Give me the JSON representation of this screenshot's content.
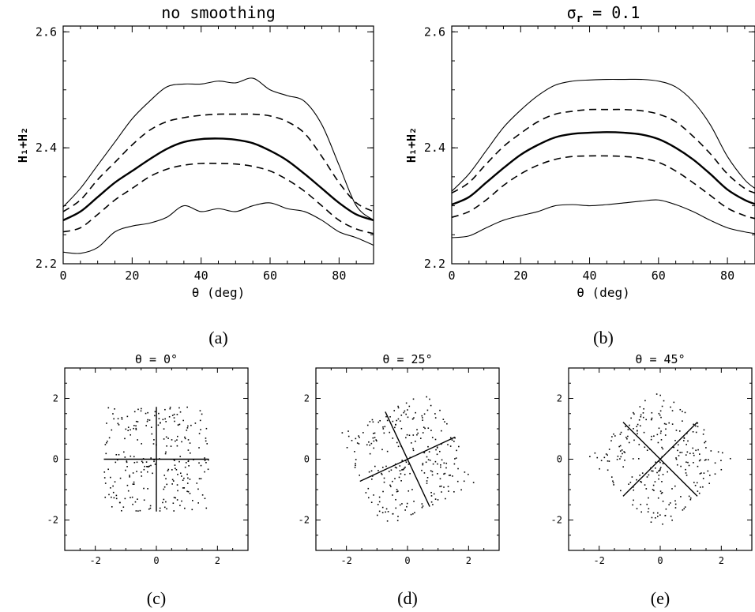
{
  "chart_data": [
    {
      "id": "a",
      "type": "line",
      "title": "no smoothing",
      "caption": "(a)",
      "xlabel": "θ (deg)",
      "ylabel": "H₁+H₂",
      "xlim": [
        0,
        90
      ],
      "ylim": [
        2.2,
        2.61
      ],
      "xticks": [
        0,
        20,
        40,
        60,
        80
      ],
      "yticks": [
        2.2,
        2.4,
        2.6
      ],
      "yticklabels": [
        "2.2",
        "2.4",
        "2.6"
      ],
      "x": [
        0,
        5,
        10,
        15,
        20,
        25,
        30,
        35,
        40,
        45,
        50,
        55,
        60,
        65,
        70,
        75,
        80,
        85,
        90
      ],
      "series": [
        {
          "style": "thin",
          "values": [
            2.298,
            2.33,
            2.37,
            2.41,
            2.45,
            2.48,
            2.505,
            2.51,
            2.51,
            2.515,
            2.512,
            2.52,
            2.5,
            2.49,
            2.48,
            2.44,
            2.37,
            2.3,
            2.275
          ]
        },
        {
          "style": "dashed",
          "values": [
            2.29,
            2.31,
            2.345,
            2.375,
            2.405,
            2.43,
            2.445,
            2.452,
            2.456,
            2.458,
            2.458,
            2.458,
            2.455,
            2.445,
            2.425,
            2.385,
            2.34,
            2.305,
            2.29
          ]
        },
        {
          "style": "thick",
          "values": [
            2.275,
            2.29,
            2.315,
            2.34,
            2.36,
            2.38,
            2.398,
            2.41,
            2.415,
            2.416,
            2.414,
            2.408,
            2.395,
            2.378,
            2.355,
            2.33,
            2.305,
            2.285,
            2.275
          ]
        },
        {
          "style": "dashed",
          "values": [
            2.255,
            2.262,
            2.285,
            2.31,
            2.33,
            2.35,
            2.363,
            2.37,
            2.373,
            2.373,
            2.372,
            2.368,
            2.36,
            2.345,
            2.325,
            2.3,
            2.275,
            2.26,
            2.252
          ]
        },
        {
          "style": "thin",
          "values": [
            2.22,
            2.218,
            2.228,
            2.255,
            2.265,
            2.27,
            2.28,
            2.3,
            2.29,
            2.295,
            2.29,
            2.3,
            2.305,
            2.295,
            2.29,
            2.275,
            2.255,
            2.245,
            2.232
          ]
        }
      ]
    },
    {
      "id": "b",
      "type": "line",
      "title": "σr = 0.1",
      "title_symbol": "σ",
      "title_sub": "r",
      "title_rest": " = 0.1",
      "caption": "(b)",
      "xlabel": "θ (deg)",
      "ylabel": "H₁+H₂",
      "xlim": [
        0,
        88
      ],
      "ylim": [
        2.2,
        2.61
      ],
      "xticks": [
        0,
        20,
        40,
        60,
        80
      ],
      "yticks": [
        2.2,
        2.4,
        2.6
      ],
      "yticklabels": [
        "2.2",
        "2.4",
        "2.6"
      ],
      "x": [
        0,
        5,
        10,
        15,
        20,
        25,
        30,
        35,
        40,
        45,
        50,
        55,
        60,
        65,
        70,
        75,
        80,
        85,
        88
      ],
      "series": [
        {
          "style": "thin",
          "values": [
            2.325,
            2.355,
            2.395,
            2.435,
            2.465,
            2.49,
            2.508,
            2.515,
            2.517,
            2.518,
            2.518,
            2.518,
            2.515,
            2.505,
            2.48,
            2.44,
            2.385,
            2.345,
            2.33
          ]
        },
        {
          "style": "dashed",
          "values": [
            2.322,
            2.34,
            2.372,
            2.402,
            2.425,
            2.445,
            2.458,
            2.463,
            2.466,
            2.466,
            2.466,
            2.464,
            2.458,
            2.445,
            2.42,
            2.39,
            2.355,
            2.33,
            2.322
          ]
        },
        {
          "style": "thick",
          "values": [
            2.302,
            2.315,
            2.34,
            2.365,
            2.388,
            2.405,
            2.418,
            2.424,
            2.426,
            2.427,
            2.426,
            2.423,
            2.415,
            2.4,
            2.38,
            2.355,
            2.328,
            2.31,
            2.303
          ]
        },
        {
          "style": "dashed",
          "values": [
            2.28,
            2.29,
            2.31,
            2.335,
            2.355,
            2.37,
            2.38,
            2.385,
            2.386,
            2.386,
            2.385,
            2.382,
            2.375,
            2.36,
            2.34,
            2.318,
            2.296,
            2.283,
            2.278
          ]
        },
        {
          "style": "thin",
          "values": [
            2.245,
            2.248,
            2.262,
            2.275,
            2.283,
            2.29,
            2.3,
            2.302,
            2.3,
            2.302,
            2.305,
            2.308,
            2.31,
            2.302,
            2.29,
            2.275,
            2.262,
            2.255,
            2.252
          ]
        }
      ]
    },
    {
      "id": "c",
      "type": "scatter",
      "title": "θ =  0°",
      "caption": "(c)",
      "rotation_deg": 0,
      "half_width": 1.72,
      "xlim": [
        -3,
        3
      ],
      "ylim": [
        -3,
        3
      ],
      "xticks": [
        -2,
        0,
        2
      ],
      "yticks": [
        -2,
        0,
        2
      ],
      "n_points": 260
    },
    {
      "id": "d",
      "type": "scatter",
      "title": "θ = 25°",
      "caption": "(d)",
      "rotation_deg": 25,
      "half_width": 1.72,
      "xlim": [
        -3,
        3
      ],
      "ylim": [
        -3,
        3
      ],
      "xticks": [
        -2,
        0,
        2
      ],
      "yticks": [
        -2,
        0,
        2
      ],
      "n_points": 260
    },
    {
      "id": "e",
      "type": "scatter",
      "title": "θ = 45°",
      "caption": "(e)",
      "rotation_deg": 45,
      "half_width": 1.72,
      "xlim": [
        -3,
        3
      ],
      "ylim": [
        -3,
        3
      ],
      "xticks": [
        -2,
        0,
        2
      ],
      "yticks": [
        -2,
        0,
        2
      ],
      "n_points": 260
    }
  ]
}
